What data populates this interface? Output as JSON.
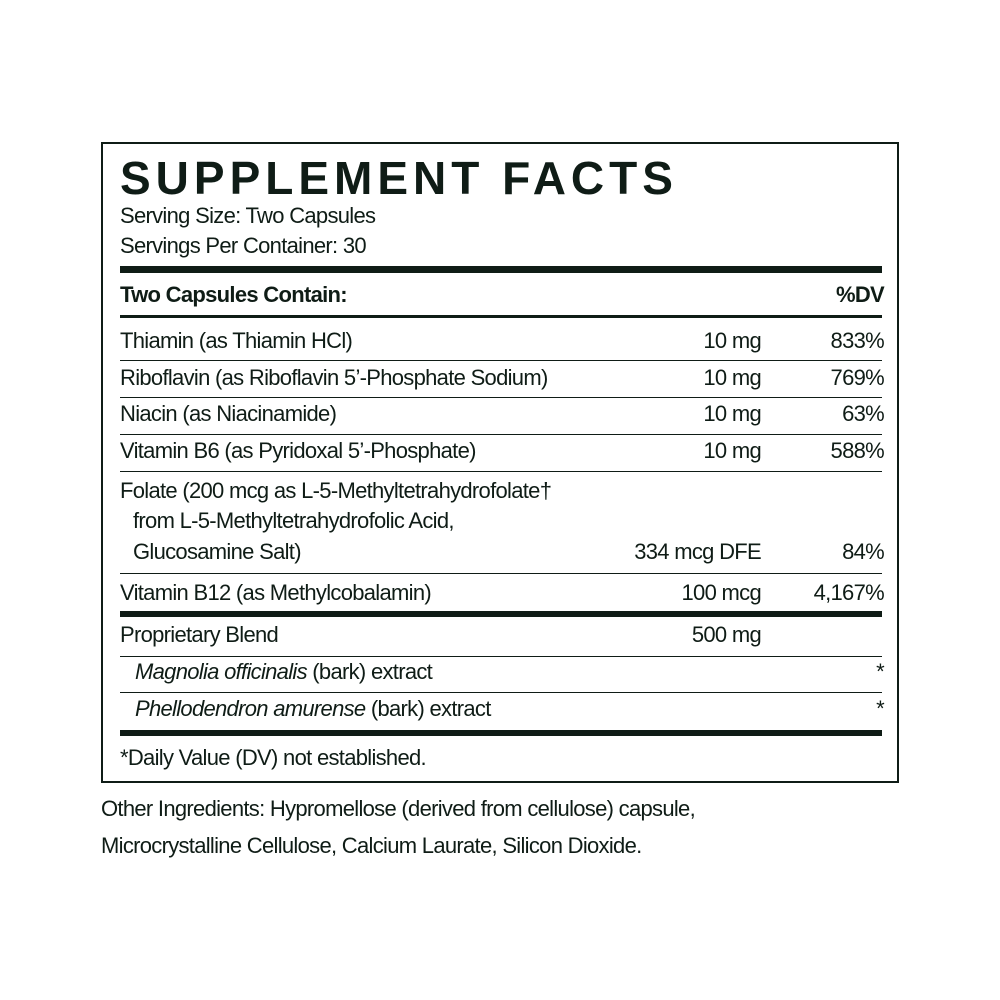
{
  "title": "SUPPLEMENT FACTS",
  "serving_size": "Serving Size: Two Capsules",
  "servings_per_container": "Servings Per Container: 30",
  "header": {
    "contain": "Two Capsules Contain:",
    "dv": "%DV"
  },
  "rows": [
    {
      "name": "Thiamin (as Thiamin HCl)",
      "amount": "10 mg",
      "dv": "833%"
    },
    {
      "name": "Riboflavin (as Riboflavin 5’-Phosphate Sodium)",
      "amount": "10 mg",
      "dv": "769%"
    },
    {
      "name": "Niacin (as Niacinamide)",
      "amount": "10 mg",
      "dv": "63%"
    },
    {
      "name": "Vitamin B6 (as Pyridoxal 5’-Phosphate)",
      "amount": "10 mg",
      "dv": "588%"
    },
    {
      "name_lines": [
        "Folate (200 mcg as L-5-Methyltetrahydrofolate†",
        "from L-5-Methyltetrahydrofolic Acid,",
        "Glucosamine Salt)"
      ],
      "amount": "334 mcg DFE",
      "dv": "84%"
    },
    {
      "name": "Vitamin B12 (as Methylcobalamin)",
      "amount": "100 mcg",
      "dv": "4,167%"
    }
  ],
  "blend": {
    "name": "Proprietary Blend",
    "amount": "500 mg",
    "items": [
      {
        "latin": "Magnolia officinalis",
        "rest": " (bark) extract",
        "dv": "*"
      },
      {
        "latin": "Phellodendron amurense",
        "rest": " (bark) extract",
        "dv": "*"
      }
    ]
  },
  "footnote": "*Daily Value (DV) not established.",
  "other_ingredients": [
    "Other Ingredients: Hypromellose (derived from cellulose) capsule,",
    "Microcrystalline Cellulose, Calcium Laurate, Silicon Dioxide."
  ]
}
